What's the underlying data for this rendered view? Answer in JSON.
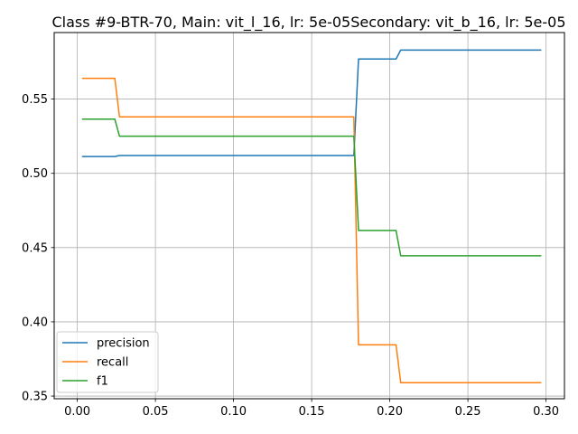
{
  "chart_data": {
    "type": "line",
    "title": "Class #9-BTR-70, Main: vit_l_16, lr: 5e-05Secondary: vit_b_16, lr: 5e-05",
    "xlabel": "",
    "ylabel": "",
    "xlim": [
      -0.0148,
      0.3118
    ],
    "ylim": [
      0.3482,
      0.5948
    ],
    "xticks": [
      0.0,
      0.05,
      0.1,
      0.15,
      0.2,
      0.25,
      0.3
    ],
    "xtick_labels": [
      "0.00",
      "0.05",
      "0.10",
      "0.15",
      "0.20",
      "0.25",
      "0.30"
    ],
    "yticks": [
      0.35,
      0.4,
      0.45,
      0.5,
      0.55
    ],
    "ytick_labels": [
      "0.35",
      "0.40",
      "0.45",
      "0.50",
      "0.55"
    ],
    "grid": true,
    "legend_position": "lower-left",
    "series": [
      {
        "name": "precision",
        "color": "#1f77b4",
        "points": [
          [
            0.003,
            0.5113
          ],
          [
            0.024,
            0.5113
          ],
          [
            0.027,
            0.512
          ],
          [
            0.177,
            0.512
          ],
          [
            0.18,
            0.577
          ],
          [
            0.204,
            0.577
          ],
          [
            0.207,
            0.583
          ],
          [
            0.297,
            0.583
          ]
        ]
      },
      {
        "name": "recall",
        "color": "#ff7f0e",
        "points": [
          [
            0.003,
            0.564
          ],
          [
            0.024,
            0.564
          ],
          [
            0.027,
            0.538
          ],
          [
            0.177,
            0.538
          ],
          [
            0.18,
            0.3845
          ],
          [
            0.204,
            0.3845
          ],
          [
            0.207,
            0.359
          ],
          [
            0.297,
            0.359
          ]
        ]
      },
      {
        "name": "f1",
        "color": "#2ca02c",
        "points": [
          [
            0.003,
            0.5365
          ],
          [
            0.024,
            0.5365
          ],
          [
            0.027,
            0.525
          ],
          [
            0.177,
            0.525
          ],
          [
            0.18,
            0.4615
          ],
          [
            0.204,
            0.4615
          ],
          [
            0.207,
            0.4445
          ],
          [
            0.297,
            0.4445
          ]
        ]
      }
    ]
  }
}
